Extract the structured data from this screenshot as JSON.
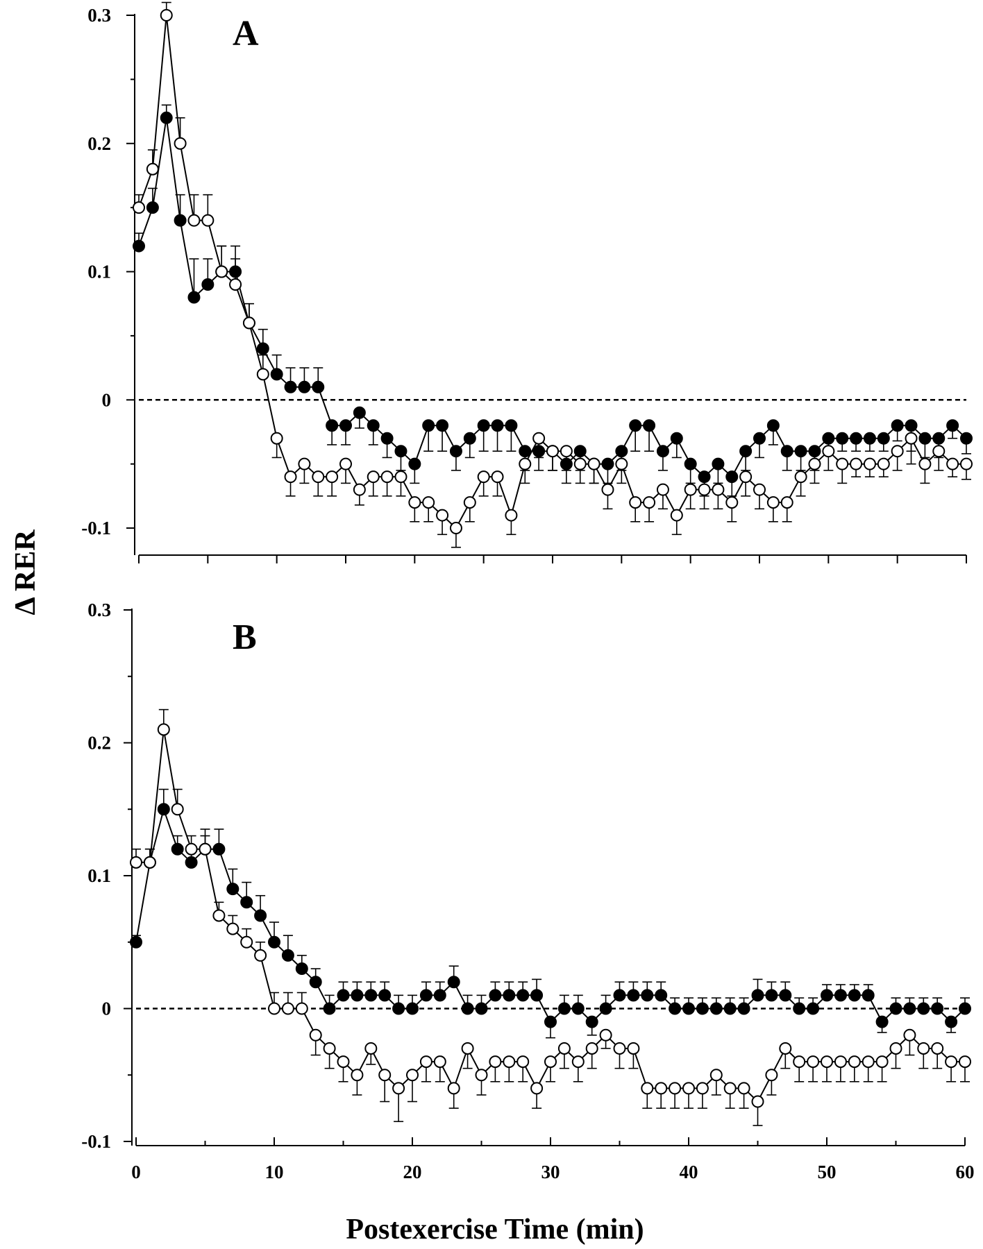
{
  "chart_data": [
    {
      "type": "line",
      "panel_label": "A",
      "xlabel": "",
      "ylabel": "Δ RER",
      "xlim": [
        0,
        60
      ],
      "ylim": [
        -0.12,
        0.3
      ],
      "yticks": [
        -0.1,
        0,
        0.1,
        0.2,
        0.3
      ],
      "ytick_labels": [
        "-0.1",
        "0",
        "0.1",
        "0.2",
        "0.3"
      ],
      "xticks": [
        0,
        5,
        10,
        15,
        20,
        25,
        30,
        35,
        40,
        45,
        50,
        55,
        60
      ],
      "xtick_labels": [],
      "reference_line": 0,
      "series": [
        {
          "marker": "filled-circle",
          "x": [
            0,
            1,
            2,
            3,
            4,
            5,
            6,
            7,
            8,
            9,
            10,
            11,
            12,
            13,
            14,
            15,
            16,
            17,
            18,
            19,
            20,
            21,
            22,
            23,
            24,
            25,
            26,
            27,
            28,
            29,
            30,
            31,
            32,
            33,
            34,
            35,
            36,
            37,
            38,
            39,
            40,
            41,
            42,
            43,
            44,
            45,
            46,
            47,
            48,
            49,
            50,
            51,
            52,
            53,
            54,
            55,
            56,
            57,
            58,
            59,
            60
          ],
          "y": [
            0.12,
            0.15,
            0.22,
            0.14,
            0.08,
            0.09,
            0.1,
            0.1,
            0.06,
            0.04,
            0.02,
            0.01,
            0.01,
            0.01,
            -0.02,
            -0.02,
            -0.01,
            -0.02,
            -0.03,
            -0.04,
            -0.05,
            -0.02,
            -0.02,
            -0.04,
            -0.03,
            -0.02,
            -0.02,
            -0.02,
            -0.04,
            -0.04,
            -0.04,
            -0.05,
            -0.04,
            -0.05,
            -0.05,
            -0.04,
            -0.02,
            -0.02,
            -0.04,
            -0.03,
            -0.05,
            -0.06,
            -0.05,
            -0.06,
            -0.04,
            -0.03,
            -0.02,
            -0.04,
            -0.04,
            -0.04,
            -0.03,
            -0.03,
            -0.03,
            -0.03,
            -0.03,
            -0.02,
            -0.02,
            -0.03,
            -0.03,
            -0.02,
            -0.03
          ],
          "err": [
            0.01,
            0.015,
            0.01,
            0.02,
            0.03,
            0.02,
            0.02,
            0.02,
            0.015,
            0.015,
            0.015,
            0.015,
            0.015,
            0.015,
            0.015,
            0.015,
            0.012,
            0.015,
            0.015,
            0.015,
            0.015,
            0.02,
            0.02,
            0.015,
            0.015,
            0.02,
            0.02,
            0.02,
            0.015,
            0.015,
            0.015,
            0.015,
            0.015,
            0.015,
            0.015,
            0.015,
            0.02,
            0.02,
            0.015,
            0.015,
            0.015,
            0.015,
            0.015,
            0.015,
            0.015,
            0.015,
            0.015,
            0.015,
            0.015,
            0.015,
            0.01,
            0.01,
            0.01,
            0.01,
            0.01,
            0.012,
            0.02,
            0.015,
            0.015,
            0.01,
            0.012
          ]
        },
        {
          "marker": "open-circle",
          "x": [
            0,
            1,
            2,
            3,
            4,
            5,
            6,
            7,
            8,
            9,
            10,
            11,
            12,
            13,
            14,
            15,
            16,
            17,
            18,
            19,
            20,
            21,
            22,
            23,
            24,
            25,
            26,
            27,
            28,
            29,
            30,
            31,
            32,
            33,
            34,
            35,
            36,
            37,
            38,
            39,
            40,
            41,
            42,
            43,
            44,
            45,
            46,
            47,
            48,
            49,
            50,
            51,
            52,
            53,
            54,
            55,
            56,
            57,
            58,
            59,
            60
          ],
          "y": [
            0.15,
            0.18,
            0.3,
            0.2,
            0.14,
            0.14,
            0.1,
            0.09,
            0.06,
            0.02,
            -0.03,
            -0.06,
            -0.05,
            -0.06,
            -0.06,
            -0.05,
            -0.07,
            -0.06,
            -0.06,
            -0.06,
            -0.08,
            -0.08,
            -0.09,
            -0.1,
            -0.08,
            -0.06,
            -0.06,
            -0.09,
            -0.05,
            -0.03,
            -0.04,
            -0.04,
            -0.05,
            -0.05,
            -0.07,
            -0.05,
            -0.08,
            -0.08,
            -0.07,
            -0.09,
            -0.07,
            -0.07,
            -0.07,
            -0.08,
            -0.06,
            -0.07,
            -0.08,
            -0.08,
            -0.06,
            -0.05,
            -0.04,
            -0.05,
            -0.05,
            -0.05,
            -0.05,
            -0.04,
            -0.03,
            -0.05,
            -0.04,
            -0.05,
            -0.05
          ],
          "err": [
            0.01,
            0.015,
            0.01,
            0.02,
            0.02,
            0.02,
            0.02,
            0.02,
            0.015,
            0.015,
            0.015,
            0.015,
            0.015,
            0.015,
            0.015,
            0.015,
            0.012,
            0.015,
            0.015,
            0.015,
            0.015,
            0.015,
            0.015,
            0.015,
            0.015,
            0.015,
            0.015,
            0.015,
            0.015,
            0.015,
            0.015,
            0.015,
            0.015,
            0.015,
            0.015,
            0.015,
            0.015,
            0.015,
            0.015,
            0.015,
            0.015,
            0.015,
            0.015,
            0.015,
            0.015,
            0.015,
            0.015,
            0.015,
            0.015,
            0.015,
            0.015,
            0.015,
            0.01,
            0.01,
            0.01,
            0.015,
            0.02,
            0.015,
            0.015,
            0.01,
            0.012
          ]
        }
      ]
    },
    {
      "type": "line",
      "panel_label": "B",
      "xlabel": "Postexercise Time (min)",
      "ylabel": "Δ RER",
      "xlim": [
        0,
        60
      ],
      "ylim": [
        -0.1,
        0.3
      ],
      "yticks": [
        -0.1,
        0,
        0.1,
        0.2,
        0.3
      ],
      "ytick_labels": [
        "-0.1",
        "0",
        "0.1",
        "0.2",
        "0.3"
      ],
      "xticks": [
        0,
        10,
        20,
        30,
        40,
        50,
        60
      ],
      "xtick_labels": [
        "0",
        "10",
        "20",
        "30",
        "40",
        "50",
        "60"
      ],
      "reference_line": 0,
      "series": [
        {
          "marker": "filled-circle",
          "x": [
            0,
            1,
            2,
            3,
            4,
            5,
            6,
            7,
            8,
            9,
            10,
            11,
            12,
            13,
            14,
            15,
            16,
            17,
            18,
            19,
            20,
            21,
            22,
            23,
            24,
            25,
            26,
            27,
            28,
            29,
            30,
            31,
            32,
            33,
            34,
            35,
            36,
            37,
            38,
            39,
            40,
            41,
            42,
            43,
            44,
            45,
            46,
            47,
            48,
            49,
            50,
            51,
            52,
            53,
            54,
            55,
            56,
            57,
            58,
            59,
            60
          ],
          "y": [
            0.05,
            0.11,
            0.15,
            0.12,
            0.11,
            0.12,
            0.12,
            0.09,
            0.08,
            0.07,
            0.05,
            0.04,
            0.03,
            0.02,
            0.0,
            0.01,
            0.01,
            0.01,
            0.01,
            0.0,
            0.0,
            0.01,
            0.01,
            0.02,
            0.0,
            0.0,
            0.01,
            0.01,
            0.01,
            0.01,
            -0.01,
            0.0,
            0.0,
            -0.01,
            0.0,
            0.01,
            0.01,
            0.01,
            0.01,
            0.0,
            0.0,
            0.0,
            0.0,
            0.0,
            0.0,
            0.01,
            0.01,
            0.01,
            0.0,
            0.0,
            0.01,
            0.01,
            0.01,
            0.01,
            -0.01,
            0.0,
            0.0,
            0.0,
            0.0,
            -0.01,
            0.0
          ],
          "err": [
            0.005,
            0.01,
            0.015,
            0.01,
            0.01,
            0.015,
            0.015,
            0.015,
            0.015,
            0.015,
            0.015,
            0.015,
            0.01,
            0.01,
            0.01,
            0.01,
            0.01,
            0.01,
            0.01,
            0.01,
            0.01,
            0.01,
            0.01,
            0.012,
            0.01,
            0.01,
            0.01,
            0.01,
            0.01,
            0.012,
            0.012,
            0.01,
            0.01,
            0.01,
            0.01,
            0.01,
            0.01,
            0.01,
            0.01,
            0.008,
            0.008,
            0.008,
            0.008,
            0.008,
            0.008,
            0.012,
            0.01,
            0.01,
            0.008,
            0.008,
            0.008,
            0.008,
            0.008,
            0.008,
            0.008,
            0.008,
            0.008,
            0.008,
            0.008,
            0.008,
            0.008
          ]
        },
        {
          "marker": "open-circle",
          "x": [
            0,
            1,
            2,
            3,
            4,
            5,
            6,
            7,
            8,
            9,
            10,
            11,
            12,
            13,
            14,
            15,
            16,
            17,
            18,
            19,
            20,
            21,
            22,
            23,
            24,
            25,
            26,
            27,
            28,
            29,
            30,
            31,
            32,
            33,
            34,
            35,
            36,
            37,
            38,
            39,
            40,
            41,
            42,
            43,
            44,
            45,
            46,
            47,
            48,
            49,
            50,
            51,
            52,
            53,
            54,
            55,
            56,
            57,
            58,
            59,
            60
          ],
          "y": [
            0.11,
            0.11,
            0.21,
            0.15,
            0.12,
            0.12,
            0.07,
            0.06,
            0.05,
            0.04,
            0.0,
            0.0,
            0.0,
            -0.02,
            -0.03,
            -0.04,
            -0.05,
            -0.03,
            -0.05,
            -0.06,
            -0.05,
            -0.04,
            -0.04,
            -0.06,
            -0.03,
            -0.05,
            -0.04,
            -0.04,
            -0.04,
            -0.06,
            -0.04,
            -0.03,
            -0.04,
            -0.03,
            -0.02,
            -0.03,
            -0.03,
            -0.06,
            -0.06,
            -0.06,
            -0.06,
            -0.06,
            -0.05,
            -0.06,
            -0.06,
            -0.07,
            -0.05,
            -0.03,
            -0.04,
            -0.04,
            -0.04,
            -0.04,
            -0.04,
            -0.04,
            -0.04,
            -0.03,
            -0.02,
            -0.03,
            -0.03,
            -0.04,
            -0.04
          ],
          "err": [
            0.01,
            0.01,
            0.015,
            0.015,
            0.01,
            0.01,
            0.01,
            0.01,
            0.01,
            0.01,
            0.012,
            0.012,
            0.012,
            0.015,
            0.015,
            0.015,
            0.015,
            0.012,
            0.02,
            0.025,
            0.02,
            0.015,
            0.015,
            0.015,
            0.015,
            0.015,
            0.015,
            0.015,
            0.015,
            0.015,
            0.015,
            0.015,
            0.015,
            0.015,
            0.01,
            0.015,
            0.015,
            0.015,
            0.015,
            0.015,
            0.015,
            0.015,
            0.015,
            0.015,
            0.015,
            0.018,
            0.015,
            0.015,
            0.015,
            0.015,
            0.015,
            0.015,
            0.015,
            0.015,
            0.015,
            0.015,
            0.015,
            0.015,
            0.015,
            0.015,
            0.015
          ]
        }
      ]
    }
  ]
}
